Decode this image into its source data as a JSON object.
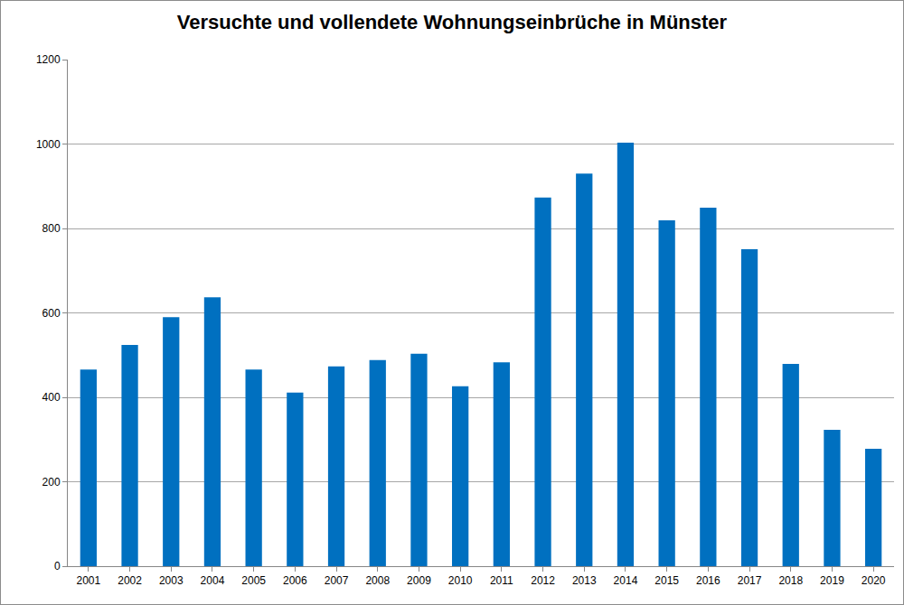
{
  "chart_data": {
    "type": "bar",
    "title": "Versuchte und vollendete Wohnungseinbrüche in Münster",
    "categories": [
      "2001",
      "2002",
      "2003",
      "2004",
      "2005",
      "2006",
      "2007",
      "2008",
      "2009",
      "2010",
      "2011",
      "2012",
      "2013",
      "2014",
      "2015",
      "2016",
      "2017",
      "2018",
      "2019",
      "2020"
    ],
    "values": [
      466,
      524,
      590,
      637,
      466,
      411,
      473,
      488,
      503,
      426,
      483,
      873,
      930,
      1003,
      819,
      849,
      751,
      479,
      323,
      278
    ],
    "color": "#0070c0",
    "ylim": [
      0,
      1200
    ],
    "yticks": [
      0,
      200,
      400,
      600,
      800,
      1000,
      1200
    ],
    "grid": true
  }
}
